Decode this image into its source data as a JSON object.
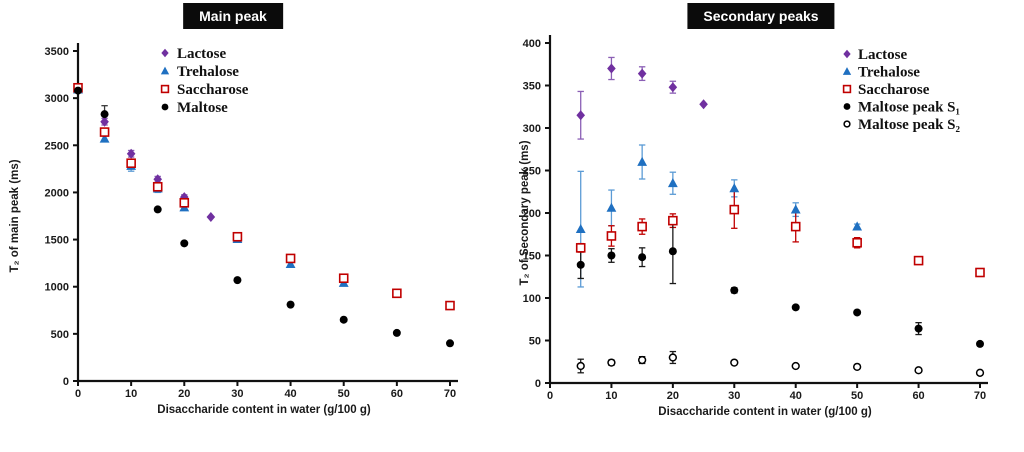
{
  "page": {
    "background": "#ffffff"
  },
  "chart_data": [
    {
      "type": "scatter",
      "title": "Main peak",
      "title_bg": "#0b0b0b",
      "title_color": "#ffffff",
      "xlabel": "Disaccharide content in water (g/100 g)",
      "ylabel": "T₂ of main peak (ms)",
      "xlim": [
        0,
        70
      ],
      "ylim": [
        0,
        3500
      ],
      "xticks": [
        0,
        10,
        20,
        30,
        40,
        50,
        60,
        70
      ],
      "yticks": [
        0,
        500,
        1000,
        1500,
        2000,
        2500,
        3000,
        3500
      ],
      "grid": false,
      "legend_position": "top-center",
      "series": [
        {
          "name": "Lactose",
          "marker": "diamond",
          "color": "#7030A0",
          "error_color": "#8B5FB5",
          "points": [
            {
              "x": 0,
              "y": 3100,
              "e": 0
            },
            {
              "x": 5,
              "y": 2750,
              "e": 35
            },
            {
              "x": 10,
              "y": 2410,
              "e": 35
            },
            {
              "x": 15,
              "y": 2140,
              "e": 30
            },
            {
              "x": 20,
              "y": 1950,
              "e": 25
            },
            {
              "x": 25,
              "y": 1740,
              "e": 0
            }
          ]
        },
        {
          "name": "Trehalose",
          "marker": "triangle",
          "color": "#1F70C1",
          "error_color": "#5B9BD5",
          "points": [
            {
              "x": 0,
              "y": 3090,
              "e": 0
            },
            {
              "x": 5,
              "y": 2570,
              "e": 30
            },
            {
              "x": 10,
              "y": 2280,
              "e": 55
            },
            {
              "x": 15,
              "y": 2040,
              "e": 40
            },
            {
              "x": 20,
              "y": 1840,
              "e": 30
            },
            {
              "x": 30,
              "y": 1505,
              "e": 0
            },
            {
              "x": 40,
              "y": 1240,
              "e": 25
            },
            {
              "x": 50,
              "y": 1040,
              "e": 20
            }
          ]
        },
        {
          "name": "Saccharose",
          "marker": "open-square",
          "color": "#C00000",
          "error_color": "#C00000",
          "points": [
            {
              "x": 0,
              "y": 3110,
              "e": 40
            },
            {
              "x": 5,
              "y": 2640,
              "e": 30
            },
            {
              "x": 10,
              "y": 2310,
              "e": 30
            },
            {
              "x": 15,
              "y": 2060,
              "e": 30
            },
            {
              "x": 20,
              "y": 1890,
              "e": 25
            },
            {
              "x": 30,
              "y": 1530,
              "e": 0
            },
            {
              "x": 40,
              "y": 1300,
              "e": 0
            },
            {
              "x": 50,
              "y": 1090,
              "e": 0
            },
            {
              "x": 60,
              "y": 930,
              "e": 0
            },
            {
              "x": 70,
              "y": 800,
              "e": 0
            }
          ]
        },
        {
          "name": "Maltose",
          "marker": "circle",
          "color": "#000000",
          "error_color": "#3a3a3a",
          "points": [
            {
              "x": 0,
              "y": 3080,
              "e": 0
            },
            {
              "x": 5,
              "y": 2830,
              "e": 90
            },
            {
              "x": 15,
              "y": 1820,
              "e": 0
            },
            {
              "x": 20,
              "y": 1460,
              "e": 0
            },
            {
              "x": 30,
              "y": 1070,
              "e": 0
            },
            {
              "x": 40,
              "y": 810,
              "e": 0
            },
            {
              "x": 50,
              "y": 650,
              "e": 0
            },
            {
              "x": 60,
              "y": 510,
              "e": 0
            },
            {
              "x": 70,
              "y": 400,
              "e": 0
            }
          ]
        }
      ]
    },
    {
      "type": "scatter",
      "title": "Secondary peaks",
      "title_bg": "#0b0b0b",
      "title_color": "#ffffff",
      "xlabel": "Disaccharide content in water (g/100 g)",
      "ylabel": "T₂ of Secondary peak (ms)",
      "xlim": [
        0,
        70
      ],
      "ylim": [
        0,
        400
      ],
      "xticks": [
        0,
        10,
        20,
        30,
        40,
        50,
        60,
        70
      ],
      "yticks": [
        0,
        50,
        100,
        150,
        200,
        250,
        300,
        350,
        400
      ],
      "grid": false,
      "legend_position": "top-right",
      "series": [
        {
          "name": "Lactose",
          "marker": "diamond",
          "color": "#7030A0",
          "error_color": "#8B5FB5",
          "points": [
            {
              "x": 5,
              "y": 315,
              "e": 28
            },
            {
              "x": 10,
              "y": 370,
              "e": 13
            },
            {
              "x": 15,
              "y": 364,
              "e": 8
            },
            {
              "x": 20,
              "y": 348,
              "e": 7
            },
            {
              "x": 25,
              "y": 328,
              "e": 0
            }
          ]
        },
        {
          "name": "Trehalose",
          "marker": "triangle",
          "color": "#1F70C1",
          "error_color": "#5B9BD5",
          "points": [
            {
              "x": 5,
              "y": 181,
              "e": 68
            },
            {
              "x": 10,
              "y": 206,
              "e": 21
            },
            {
              "x": 15,
              "y": 260,
              "e": 20
            },
            {
              "x": 20,
              "y": 235,
              "e": 13
            },
            {
              "x": 30,
              "y": 229,
              "e": 10
            },
            {
              "x": 40,
              "y": 204,
              "e": 8
            },
            {
              "x": 50,
              "y": 184,
              "e": 3
            }
          ]
        },
        {
          "name": "Saccharose",
          "marker": "open-square",
          "color": "#C00000",
          "error_color": "#C00000",
          "points": [
            {
              "x": 5,
              "y": 159,
              "e": 5
            },
            {
              "x": 10,
              "y": 173,
              "e": 12
            },
            {
              "x": 15,
              "y": 184,
              "e": 9
            },
            {
              "x": 20,
              "y": 191,
              "e": 8
            },
            {
              "x": 30,
              "y": 204,
              "e": 22
            },
            {
              "x": 40,
              "y": 184,
              "e": 18
            },
            {
              "x": 50,
              "y": 165,
              "e": 6
            },
            {
              "x": 60,
              "y": 144,
              "e": 3
            },
            {
              "x": 70,
              "y": 130,
              "e": 0
            }
          ]
        },
        {
          "name": "Maltose peak S₁",
          "marker": "circle",
          "color": "#000000",
          "error_color": "#1a1a1a",
          "points": [
            {
              "x": 5,
              "y": 139,
              "e": 16
            },
            {
              "x": 10,
              "y": 150,
              "e": 8
            },
            {
              "x": 15,
              "y": 148,
              "e": 11
            },
            {
              "x": 20,
              "y": 155,
              "e": 38
            },
            {
              "x": 30,
              "y": 109,
              "e": 3
            },
            {
              "x": 40,
              "y": 89,
              "e": 2
            },
            {
              "x": 50,
              "y": 83,
              "e": 2
            },
            {
              "x": 60,
              "y": 64,
              "e": 7
            },
            {
              "x": 70,
              "y": 46,
              "e": 2
            }
          ]
        },
        {
          "name": "Maltose peak S₂",
          "marker": "open-circle",
          "color": "#000000",
          "error_color": "#1a1a1a",
          "points": [
            {
              "x": 5,
              "y": 20,
              "e": 8
            },
            {
              "x": 10,
              "y": 24,
              "e": 3
            },
            {
              "x": 15,
              "y": 27,
              "e": 4
            },
            {
              "x": 20,
              "y": 30,
              "e": 7
            },
            {
              "x": 30,
              "y": 24,
              "e": 0
            },
            {
              "x": 40,
              "y": 20,
              "e": 0
            },
            {
              "x": 50,
              "y": 19,
              "e": 0
            },
            {
              "x": 60,
              "y": 15,
              "e": 0
            },
            {
              "x": 70,
              "y": 12,
              "e": 0
            }
          ]
        }
      ]
    }
  ]
}
